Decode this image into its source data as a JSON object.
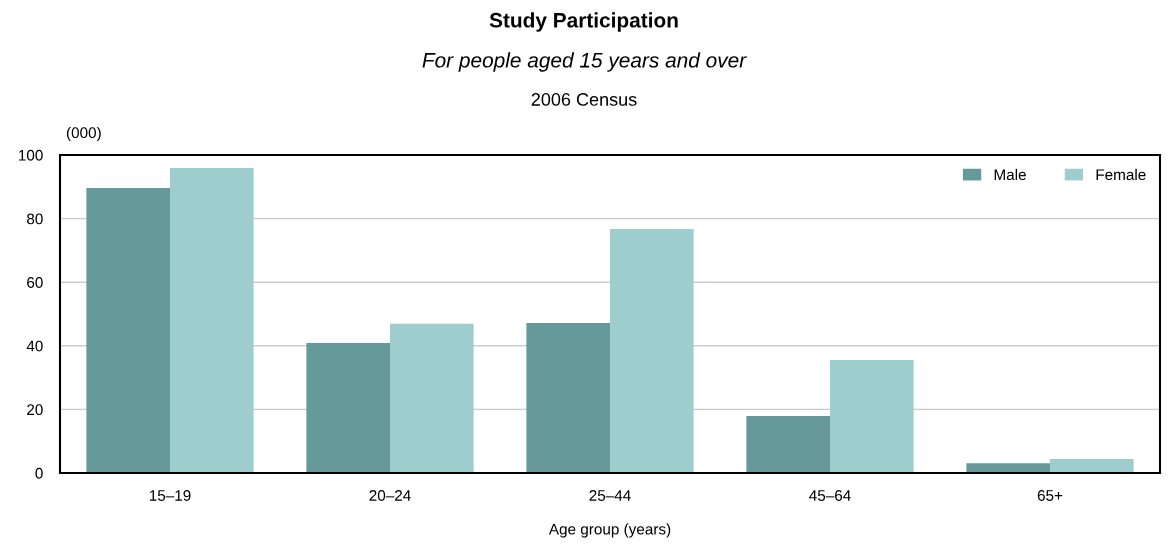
{
  "chart_data": {
    "type": "bar",
    "title": "Study Participation",
    "subtitle": "For people aged 15 years and over",
    "annotations": [
      "2006 Census"
    ],
    "ylabel": "(000)",
    "xlabel": "Age group (years)",
    "categories": [
      "15–19",
      "20–24",
      "25–44",
      "45–64",
      "65+"
    ],
    "series": [
      {
        "name": "Male",
        "color": "#669999",
        "values": [
          89.6,
          40.9,
          47.2,
          17.9,
          3.1
        ]
      },
      {
        "name": "Female",
        "color": "#9dcdcd",
        "values": [
          95.9,
          46.9,
          76.7,
          35.5,
          4.4
        ]
      }
    ],
    "ylim": [
      0,
      100
    ],
    "yticks": [
      0,
      20,
      40,
      60,
      80,
      100
    ],
    "grid": "y",
    "legend": "top right"
  }
}
